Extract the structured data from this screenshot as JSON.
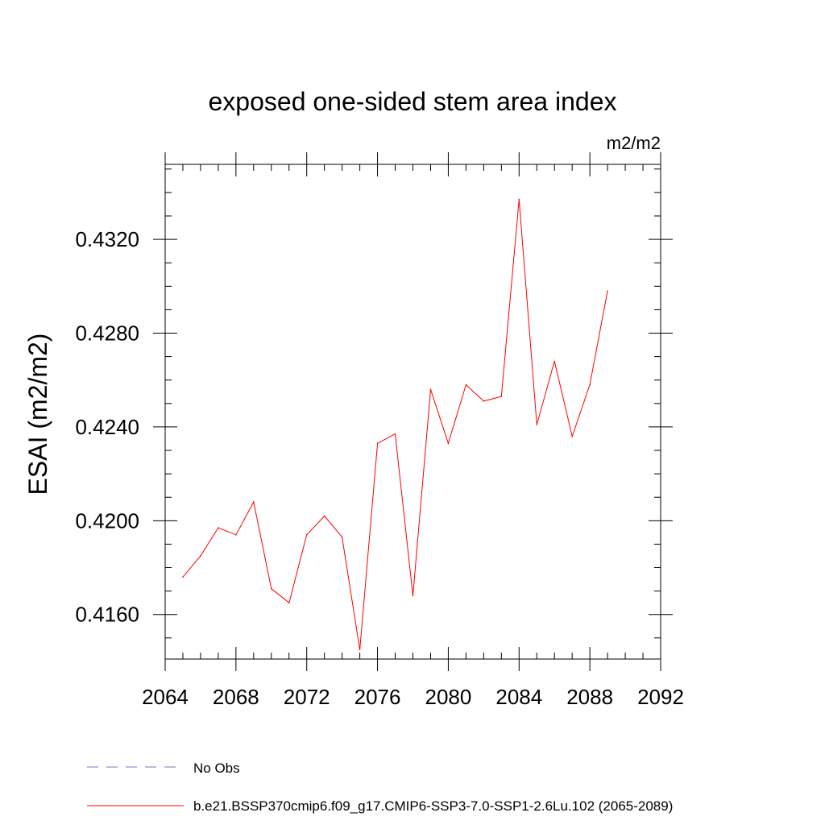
{
  "chart_data": {
    "type": "line",
    "title": "exposed one-sided stem area index",
    "units_label": "m2/m2",
    "xlabel": "",
    "ylabel": "ESAI  (m2/m2)",
    "xlim": [
      2064,
      2092
    ],
    "ylim": [
      0.4141,
      0.4352
    ],
    "x_ticks": [
      2064,
      2068,
      2072,
      2076,
      2080,
      2084,
      2088,
      2092
    ],
    "x_tick_labels": [
      "2064",
      "2068",
      "2072",
      "2076",
      "2080",
      "2084",
      "2088",
      "2092"
    ],
    "y_ticks": [
      0.416,
      0.42,
      0.424,
      0.428,
      0.432
    ],
    "y_tick_labels": [
      "0.4160",
      "0.4200",
      "0.4240",
      "0.4280",
      "0.4320"
    ],
    "x_minor_step": 1,
    "y_minor_step": 0.001,
    "grid": false,
    "series": [
      {
        "name": "b.e21.BSSP370cmip6.f09_g17.CMIP6-SSP3-7.0-SSP1-2.6Lu.102 (2065-2089)",
        "color": "#ff0000",
        "style": "solid",
        "x": [
          2065,
          2066,
          2067,
          2068,
          2069,
          2070,
          2071,
          2072,
          2073,
          2074,
          2075,
          2076,
          2077,
          2078,
          2079,
          2080,
          2081,
          2082,
          2083,
          2084,
          2085,
          2086,
          2087,
          2088,
          2089
        ],
        "values": [
          0.4176,
          0.4185,
          0.4197,
          0.4194,
          0.4208,
          0.4171,
          0.4165,
          0.4194,
          0.4202,
          0.4193,
          0.4145,
          0.4233,
          0.4237,
          0.4168,
          0.4256,
          0.4233,
          0.4258,
          0.4251,
          0.4253,
          0.4337,
          0.4241,
          0.4268,
          0.4236,
          0.4258,
          0.4298
        ]
      }
    ],
    "legend": {
      "placement": "bottom",
      "entries": [
        {
          "label": "No Obs",
          "color": "#7f6fbf",
          "style": "dashed"
        },
        {
          "label": "b.e21.BSSP370cmip6.f09_g17.CMIP6-SSP3-7.0-SSP1-2.6Lu.102 (2065-2089)",
          "color": "#ff0000",
          "style": "solid"
        }
      ]
    }
  }
}
